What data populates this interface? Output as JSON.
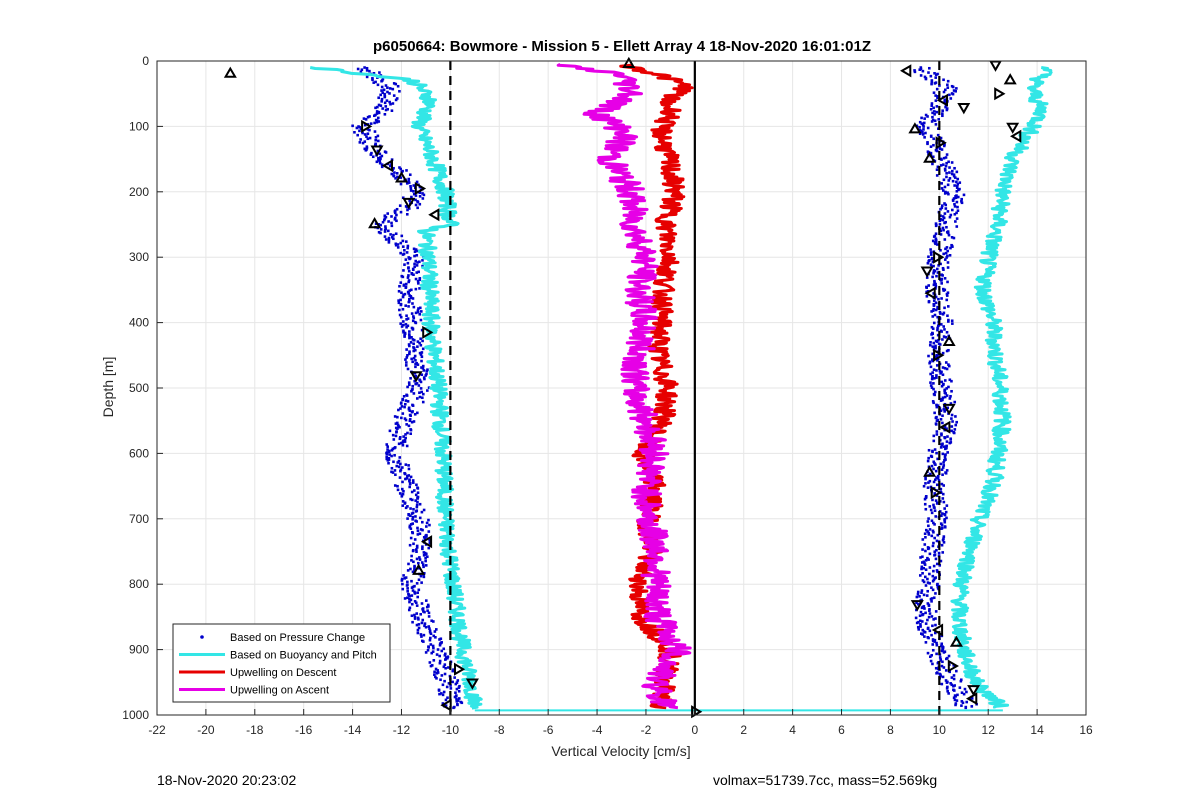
{
  "footer": {
    "left": "18-Nov-2020 20:23:02",
    "right": "volmax=51739.7cc, mass=52.569kg"
  },
  "chart_data": {
    "type": "line",
    "title": "p6050664: Bowmore - Mission 5 - Ellett Array 4 18-Nov-2020 16:01:01Z",
    "xlabel": "Vertical Velocity [cm/s]",
    "ylabel": "Depth [m]",
    "xlim": [
      -22,
      16
    ],
    "ylim": [
      0,
      1000
    ],
    "y_reversed": true,
    "grid": true,
    "legend_position": "bottom-left",
    "xticks": [
      -22,
      -20,
      -18,
      -16,
      -14,
      -12,
      -10,
      -8,
      -6,
      -4,
      -2,
      0,
      2,
      4,
      6,
      8,
      10,
      12,
      14,
      16
    ],
    "yticks": [
      0,
      100,
      200,
      300,
      400,
      500,
      600,
      700,
      800,
      900,
      1000
    ],
    "reference_lines": [
      {
        "x": -10,
        "style": "dashed",
        "color": "#000000"
      },
      {
        "x": 10,
        "style": "dashed",
        "color": "#000000"
      },
      {
        "x": 0,
        "style": "solid",
        "color": "#000000"
      }
    ],
    "series": [
      {
        "name": "Based on Pressure Change",
        "kind": "dots",
        "color": "#0000cc",
        "profiles": [
          {
            "depth": [
              10,
              40,
              70,
              100,
              130,
              160,
              180,
              200,
              220,
              250,
              300,
              350,
              400,
              450,
              500,
              550,
              600,
              650,
              700,
              750,
              800,
              850,
              900,
              950,
              990
            ],
            "x": [
              -13.5,
              -12.5,
              -12.6,
              -13.6,
              -13.2,
              -12.4,
              -11.8,
              -11.5,
              -11.6,
              -12.8,
              -11.5,
              -11.7,
              -11.6,
              -11.4,
              -11.3,
              -11.9,
              -12.3,
              -11.8,
              -11.3,
              -11.2,
              -11.6,
              -11.2,
              -10.6,
              -10.1,
              -9.9
            ]
          },
          {
            "depth": [
              10,
              40,
              70,
              100,
              130,
              160,
              200,
              250,
              300,
              350,
              400,
              450,
              500,
              550,
              600,
              650,
              700,
              750,
              800,
              850,
              900,
              950,
              990
            ],
            "x": [
              9.2,
              10.3,
              10.0,
              9.5,
              9.8,
              10.2,
              10.6,
              10.3,
              10.0,
              9.9,
              10.1,
              9.9,
              10.1,
              10.3,
              10.0,
              9.8,
              9.9,
              9.7,
              9.6,
              9.4,
              9.9,
              10.5,
              11.2
            ]
          }
        ]
      },
      {
        "name": "Based on Buoyancy and Pitch",
        "kind": "line",
        "color": "#33e6e6",
        "profiles": [
          {
            "depth": [
              10,
              30,
              60,
              100,
              150,
              200,
              250,
              260,
              300,
              400,
              500,
              600,
              700,
              800,
              900,
              960,
              990
            ],
            "x": [
              -15.5,
              -11.5,
              -10.8,
              -11.3,
              -10.7,
              -10.2,
              -10.0,
              -11.0,
              -10.9,
              -10.8,
              -10.5,
              -10.3,
              -10.2,
              -9.9,
              -9.5,
              -9.1,
              -9.0
            ]
          },
          {
            "depth": [
              10,
              40,
              80,
              120,
              150,
              200,
              250,
              300,
              350,
              400,
              450,
              500,
              550,
              600,
              650,
              700,
              750,
              800,
              850,
              900,
              950,
              990
            ],
            "x": [
              14.5,
              13.8,
              14.2,
              13.5,
              13.0,
              12.6,
              12.4,
              12.0,
              11.8,
              12.2,
              12.3,
              12.5,
              12.6,
              12.4,
              12.2,
              11.6,
              11.3,
              10.9,
              10.8,
              11.0,
              11.5,
              12.6
            ]
          }
        ]
      },
      {
        "name": "Upwelling on Descent",
        "kind": "line",
        "color": "#e60000",
        "profiles": [
          {
            "depth": [
              5,
              20,
              40,
              60,
              80,
              100,
              150,
              200,
              250,
              300,
              350,
              400,
              450,
              500,
              550,
              600,
              650,
              700,
              750,
              800,
              850,
              900,
              950,
              990
            ],
            "x": [
              -3.0,
              -1.5,
              -0.3,
              -1.2,
              -0.9,
              -1.4,
              -1.1,
              -0.8,
              -1.2,
              -1.0,
              -1.3,
              -1.4,
              -1.5,
              -1.1,
              -1.3,
              -2.2,
              -1.6,
              -1.9,
              -1.8,
              -2.3,
              -2.2,
              -1.0,
              -1.2,
              -1.4
            ]
          }
        ]
      },
      {
        "name": "Upwelling on Ascent",
        "kind": "line",
        "color": "#e600e6",
        "profiles": [
          {
            "depth": [
              5,
              20,
              50,
              80,
              110,
              150,
              200,
              250,
              300,
              350,
              400,
              450,
              500,
              550,
              600,
              650,
              700,
              750,
              800,
              850,
              900,
              950,
              990
            ],
            "x": [
              -6.0,
              -3.0,
              -2.5,
              -4.0,
              -2.8,
              -3.5,
              -2.6,
              -2.5,
              -2.0,
              -2.3,
              -2.1,
              -2.3,
              -2.5,
              -2.0,
              -1.6,
              -2.0,
              -1.9,
              -1.5,
              -1.6,
              -1.5,
              -0.7,
              -1.6,
              -1.2
            ]
          }
        ]
      }
    ],
    "markers": {
      "symbol": "triangle",
      "points": [
        {
          "x": -19,
          "y": 20
        },
        {
          "x": -13.5,
          "y": 100
        },
        {
          "x": -13,
          "y": 135
        },
        {
          "x": -12.5,
          "y": 160
        },
        {
          "x": -12,
          "y": 180
        },
        {
          "x": -11.3,
          "y": 195
        },
        {
          "x": -11.7,
          "y": 215
        },
        {
          "x": -10.6,
          "y": 235
        },
        {
          "x": -13.1,
          "y": 250
        },
        {
          "x": -11.0,
          "y": 415
        },
        {
          "x": -11.4,
          "y": 480
        },
        {
          "x": -10.9,
          "y": 735
        },
        {
          "x": -11.3,
          "y": 780
        },
        {
          "x": -9.7,
          "y": 930
        },
        {
          "x": -9.1,
          "y": 950
        },
        {
          "x": -10.1,
          "y": 985
        },
        {
          "x": -2.7,
          "y": 5
        },
        {
          "x": 0,
          "y": 995
        },
        {
          "x": 12.3,
          "y": 5
        },
        {
          "x": 8.7,
          "y": 15
        },
        {
          "x": 12.9,
          "y": 30
        },
        {
          "x": 12.4,
          "y": 50
        },
        {
          "x": 11.0,
          "y": 70
        },
        {
          "x": 10.2,
          "y": 60
        },
        {
          "x": 9.0,
          "y": 105
        },
        {
          "x": 10.0,
          "y": 125
        },
        {
          "x": 13.0,
          "y": 100
        },
        {
          "x": 13.2,
          "y": 115
        },
        {
          "x": 9.6,
          "y": 150
        },
        {
          "x": 9.9,
          "y": 300
        },
        {
          "x": 9.5,
          "y": 320
        },
        {
          "x": 9.7,
          "y": 355
        },
        {
          "x": 10.4,
          "y": 430
        },
        {
          "x": 9.9,
          "y": 450
        },
        {
          "x": 10.4,
          "y": 530
        },
        {
          "x": 10.3,
          "y": 560
        },
        {
          "x": 9.6,
          "y": 630
        },
        {
          "x": 9.8,
          "y": 660
        },
        {
          "x": 9.1,
          "y": 830
        },
        {
          "x": 10.0,
          "y": 870
        },
        {
          "x": 10.7,
          "y": 890
        },
        {
          "x": 10.5,
          "y": 925
        },
        {
          "x": 11.4,
          "y": 960
        },
        {
          "x": 11.4,
          "y": 975
        }
      ]
    }
  }
}
